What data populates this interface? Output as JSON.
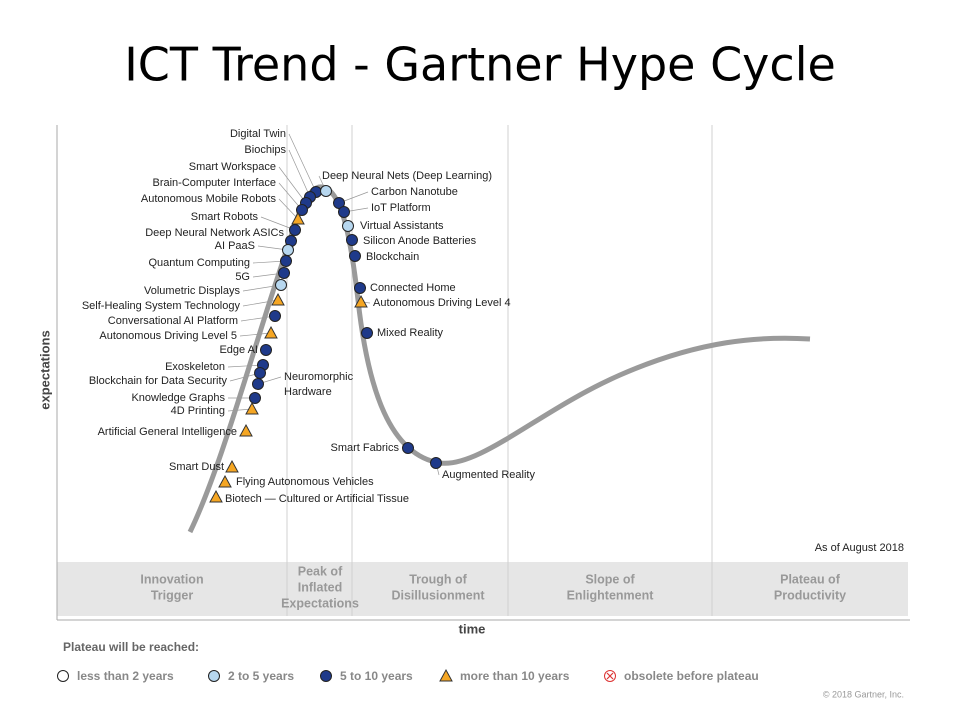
{
  "title": "ICT Trend - Gartner Hype Cycle",
  "y_axis_label": "expectations",
  "x_axis_label": "time",
  "as_of": "As of August 2018",
  "phases": [
    [
      "Innovation",
      "Trigger"
    ],
    [
      "Peak of",
      "Inflated",
      "Expectations"
    ],
    [
      "Trough of",
      "Disillusionment"
    ],
    [
      "Slope of",
      "Enlightenment"
    ],
    [
      "Plateau of",
      "Productivity"
    ]
  ],
  "technologies": [
    [
      "Digital Twin"
    ],
    [
      "Biochips"
    ],
    [
      "Smart Workspace"
    ],
    [
      "Brain-Computer Interface"
    ],
    [
      "Autonomous Mobile Robots"
    ],
    [
      "Smart Robots"
    ],
    [
      "Deep Neural Network ASICs"
    ],
    [
      "AI PaaS"
    ],
    [
      "Quantum Computing"
    ],
    [
      "5G"
    ],
    [
      "Volumetric Displays"
    ],
    [
      "Self-Healing System Technology"
    ],
    [
      "Conversational AI Platform"
    ],
    [
      "Autonomous Driving Level 5"
    ],
    [
      "Edge AI"
    ],
    [
      "Exoskeleton"
    ],
    [
      "Blockchain for Data Security"
    ],
    [
      "Neuromorphic",
      "Hardware"
    ],
    [
      "Knowledge Graphs"
    ],
    [
      "4D Printing"
    ],
    [
      "Artificial General Intelligence"
    ],
    [
      "Smart Dust"
    ],
    [
      "Flying Autonomous Vehicles"
    ],
    [
      "Biotech — Cultured or Artificial Tissue"
    ],
    [
      "Deep Neural Nets (Deep Learning)"
    ],
    [
      "Carbon Nanotube"
    ],
    [
      "IoT Platform"
    ],
    [
      "Virtual Assistants"
    ],
    [
      "Silicon Anode Batteries"
    ],
    [
      "Blockchain"
    ],
    [
      "Connected Home"
    ],
    [
      "Autonomous Driving Level 4"
    ],
    [
      "Mixed Reality"
    ],
    [
      "Smart Fabrics"
    ],
    [
      "Augmented Reality"
    ]
  ],
  "legend": {
    "title": "Plateau will be reached:",
    "items": [
      "less than 2 years",
      "2 to 5 years",
      "5 to 10 years",
      "more than 10 years",
      "obsolete before plateau"
    ]
  },
  "copyright": "© 2018 Gartner, Inc."
}
